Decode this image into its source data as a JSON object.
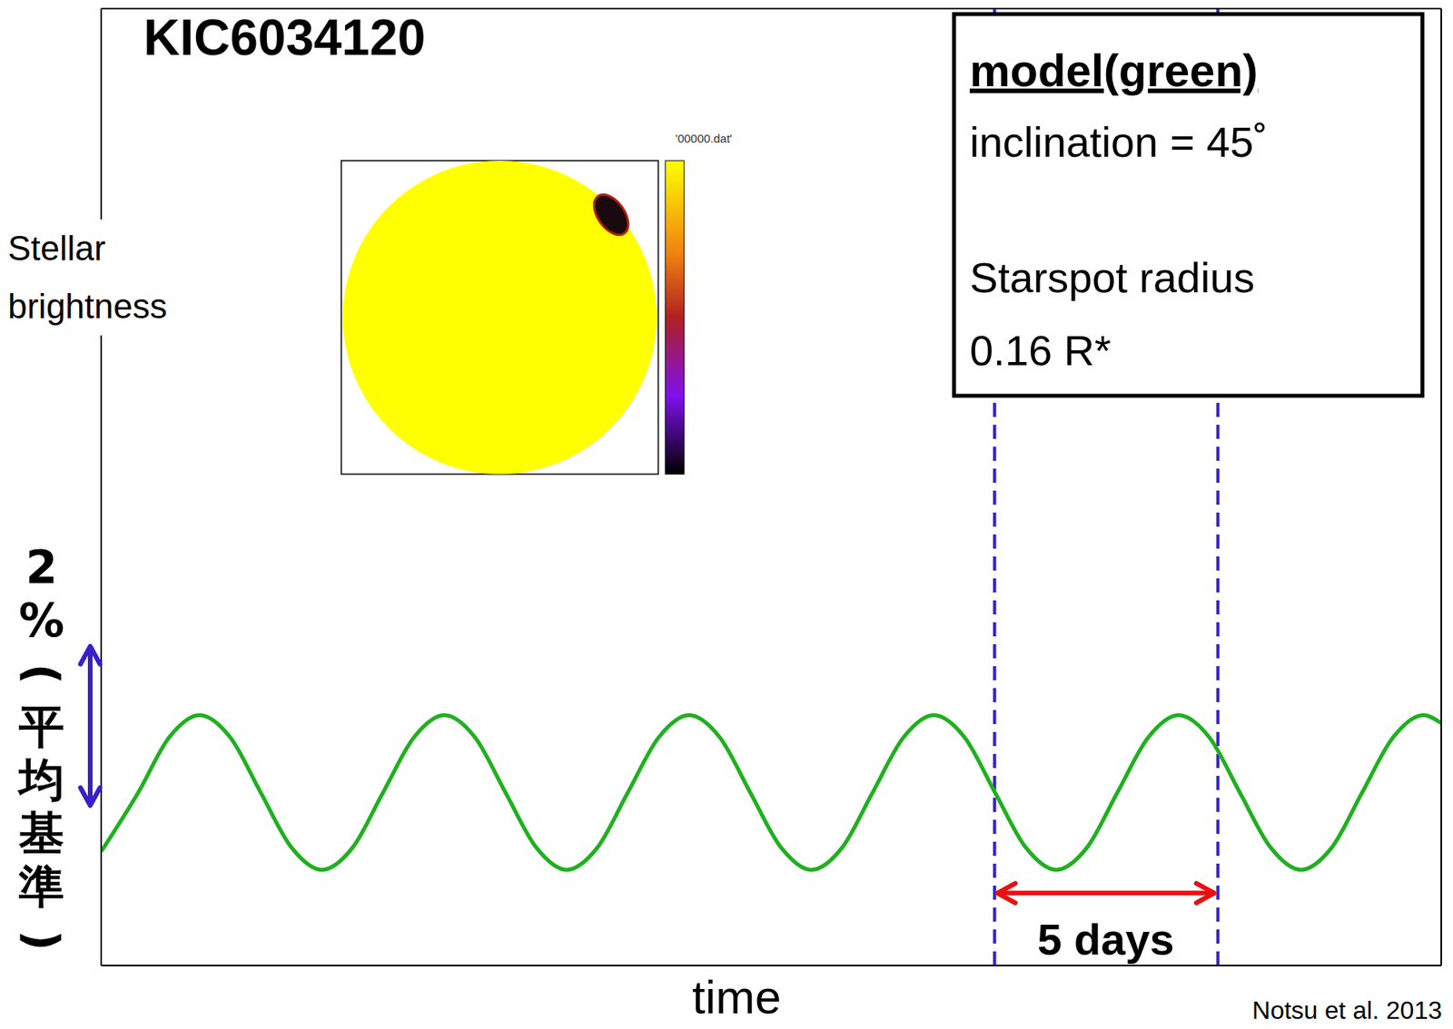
{
  "chart_data": {
    "type": "line",
    "title": "KIC6034120",
    "y_label": "Stellar brightness",
    "x_label": "time",
    "x": [
      0,
      0.83,
      1.52,
      2.2,
      2.89,
      3.57,
      4.26,
      4.94,
      5.63,
      6.31,
      7.0,
      7.68,
      8.37,
      9.05,
      9.74,
      10.42,
      11.11,
      11.79,
      12.48,
      13.16,
      13.85,
      14.53,
      15.22,
      15.9,
      16.59,
      17.27,
      17.96,
      18.64,
      19.33,
      20.01,
      20.7,
      21.38,
      22.07,
      22.75,
      23.44,
      24.12,
      24.81,
      25.49,
      26.18,
      26.86,
      27.55,
      28.23,
      28.92,
      29.6,
      30
    ],
    "series": [
      {
        "name": "model(green)",
        "color": "#1fb01f",
        "values": [
          -0.57,
          0.17,
          0.86,
          1.14,
          0.86,
          0.17,
          -0.52,
          -0.8,
          -0.52,
          0.17,
          0.86,
          1.14,
          0.86,
          0.17,
          -0.52,
          -0.8,
          -0.52,
          0.17,
          0.86,
          1.14,
          0.86,
          0.17,
          -0.52,
          -0.8,
          -0.52,
          0.17,
          0.86,
          1.14,
          0.86,
          0.17,
          -0.52,
          -0.8,
          -0.52,
          0.17,
          0.86,
          1.14,
          0.86,
          0.17,
          -0.52,
          -0.8,
          -0.52,
          0.17,
          0.86,
          1.14,
          1.04
        ]
      }
    ],
    "xlim": [
      0,
      30
    ],
    "xticks": [
      0,
      5,
      10,
      15,
      20,
      25,
      30
    ],
    "ylim": [
      -2,
      10
    ],
    "yticks": [
      0,
      2,
      4,
      6,
      8
    ],
    "tick_labels": false,
    "grid": false,
    "info_box": [
      "inclination = 45˚",
      "Starspot radius",
      "0.16 R*"
    ],
    "vlines": {
      "x": [
        20,
        25
      ],
      "color": "#3322cc",
      "line_style": "dashed"
    },
    "span_arrow": {
      "text": "5 days",
      "x": [
        20,
        25
      ],
      "y": -1.1,
      "color": "#e81010"
    },
    "scale_bar": {
      "text": "2%(平均基準)",
      "y": [
        0,
        2
      ],
      "color": "#3a1fc8"
    },
    "inset": {
      "colorbar_label": "'00000.dat'"
    },
    "credit": "Notsu et al. 2013"
  }
}
